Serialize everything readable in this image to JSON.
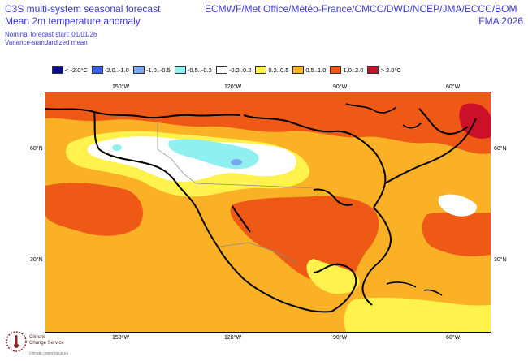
{
  "header": {
    "title_line1": "C3S multi-system seasonal forecast",
    "title_line2": "Mean 2m temperature anomaly",
    "nominal_start": "Nominal forecast start: 01/01/26",
    "variance_note": "Variance-standardized mean",
    "centres": "ECMWF/Met Office/Météo-France/CMCC/DWD/NCEP/JMA/ECCC/BOM",
    "period": "FMA 2026"
  },
  "legend": [
    {
      "label": "< -2.0°C",
      "color": "#0a0a8c"
    },
    {
      "label": "-2.0..-1.0",
      "color": "#3a5fe6"
    },
    {
      "label": "-1.0..-0.5",
      "color": "#78a8ee"
    },
    {
      "label": "-0.5..-0.2",
      "color": "#90f0f0"
    },
    {
      "label": "-0.2..0.2",
      "color": "#ffffff"
    },
    {
      "label": "0.2..0.5",
      "color": "#fff24c"
    },
    {
      "label": "0.5..1.0",
      "color": "#fbb126"
    },
    {
      "label": "1.0..2.0",
      "color": "#ee5a16"
    },
    {
      "label": "> 2.0°C",
      "color": "#cc1029"
    }
  ],
  "map": {
    "lon_ticks": [
      "150°W",
      "120°W",
      "90°W",
      "60°W"
    ],
    "lat_ticks": [
      "60°N",
      "30°N"
    ]
  },
  "logo": {
    "line1": "Climate",
    "line2": "Change Service",
    "url": "climate.copernicus.eu"
  }
}
